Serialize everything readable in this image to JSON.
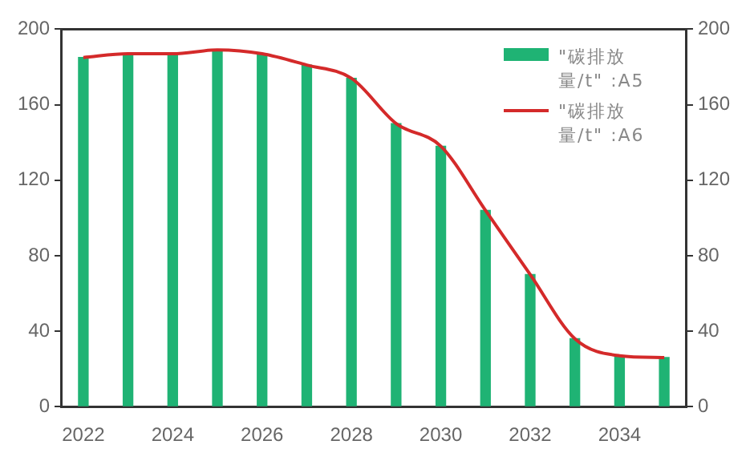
{
  "chart_data": {
    "type": "bar",
    "x": [
      2022,
      2023,
      2024,
      2025,
      2026,
      2027,
      2028,
      2029,
      2030,
      2031,
      2032,
      2033,
      2034,
      2035
    ],
    "series": [
      {
        "name": "\"碳排放量/t\" :A5",
        "color": "#1fb374",
        "values": [
          185,
          187,
          187,
          189,
          187,
          181,
          174,
          150,
          138,
          104,
          70,
          36,
          27,
          26
        ]
      },
      {
        "name": "\"碳排放量/t\" :A6",
        "type": "line",
        "color": "#d42a2a",
        "values": [
          185,
          187,
          187,
          189,
          187,
          181,
          174,
          150,
          138,
          104,
          70,
          36,
          27,
          26
        ]
      }
    ],
    "xlim": [
      2021.5,
      2035.5
    ],
    "xticks": [
      2022,
      2024,
      2026,
      2028,
      2030,
      2032,
      2034
    ],
    "ylim": [
      0,
      200
    ],
    "yticks": [
      0,
      40,
      80,
      120,
      160,
      200
    ],
    "y2lim": [
      0,
      200
    ],
    "y2ticks": [
      0,
      40,
      80,
      120,
      160,
      200
    ],
    "legend": "top right",
    "grid": false,
    "marker": "none",
    "line_style": "solid"
  }
}
